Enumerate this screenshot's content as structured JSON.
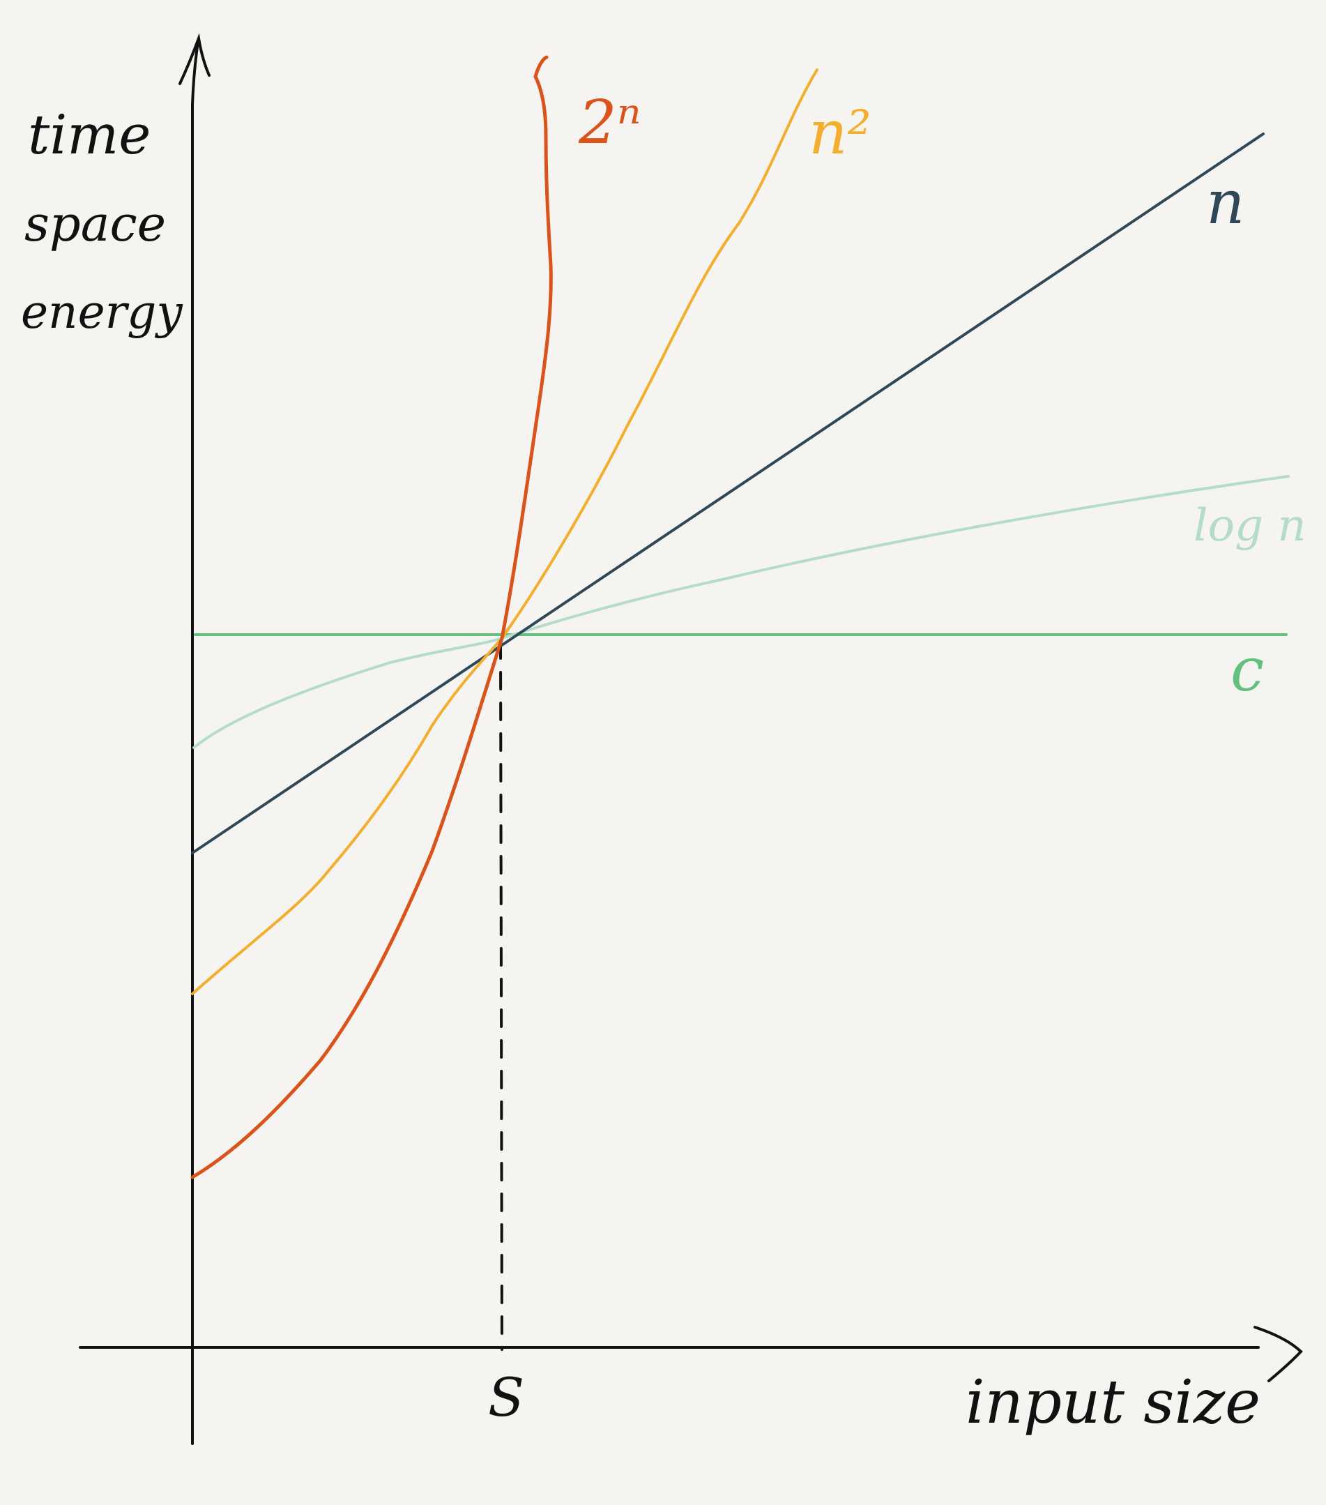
{
  "chart_data": {
    "type": "line",
    "title": "",
    "xlabel": "input size",
    "ylabel": [
      "time",
      "space",
      "energy"
    ],
    "x_ticks": [
      "S"
    ],
    "grid": false,
    "legend": "inline labels at line ends",
    "series": [
      {
        "name": "2ⁿ",
        "color": "#d9531a"
      },
      {
        "name": "n²",
        "color": "#f2ae2c"
      },
      {
        "name": "n",
        "color": "#2f4858"
      },
      {
        "name": "log n",
        "color": "#b5dccb"
      },
      {
        "name": "c",
        "color": "#63c07e"
      }
    ]
  },
  "axis_color": "#111111",
  "background": "#f5f4f1"
}
